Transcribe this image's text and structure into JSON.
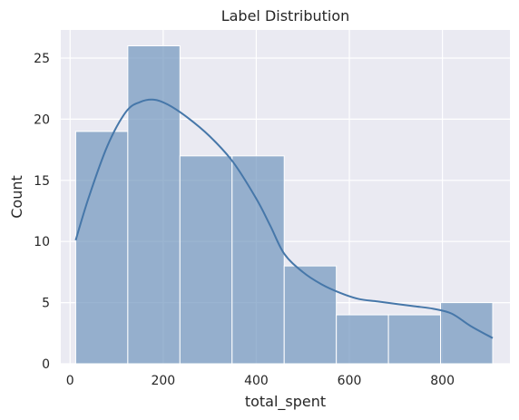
{
  "chart_data": {
    "type": "bar",
    "title": "Label Distribution",
    "xlabel": "total_spent",
    "ylabel": "Count",
    "xlim": [
      -20,
      945
    ],
    "ylim": [
      0,
      27.3
    ],
    "x_ticks": [
      0,
      200,
      400,
      600,
      800
    ],
    "y_ticks": [
      0,
      5,
      10,
      15,
      20,
      25
    ],
    "grid": true,
    "bin_edges": [
      12,
      124,
      236,
      348,
      460,
      572,
      684,
      796,
      908
    ],
    "values": [
      19,
      26,
      17,
      17,
      8,
      4,
      4,
      5
    ],
    "kde": {
      "x": [
        12,
        40,
        80,
        120,
        150,
        180,
        210,
        250,
        300,
        350,
        400,
        430,
        460,
        500,
        540,
        580,
        620,
        660,
        700,
        740,
        780,
        820,
        860,
        908
      ],
      "y": [
        10.1,
        13.6,
        17.8,
        20.6,
        21.4,
        21.6,
        21.2,
        20.2,
        18.6,
        16.5,
        13.5,
        11.3,
        9.0,
        7.5,
        6.5,
        5.8,
        5.3,
        5.1,
        4.9,
        4.7,
        4.5,
        4.1,
        3.1,
        2.1
      ]
    },
    "colors": {
      "bar_fill": "#7196bd",
      "bar_edge": "#ffffff",
      "kde_line": "#4677a9",
      "plot_bg": "#eaeaf2",
      "grid": "#ffffff"
    }
  }
}
